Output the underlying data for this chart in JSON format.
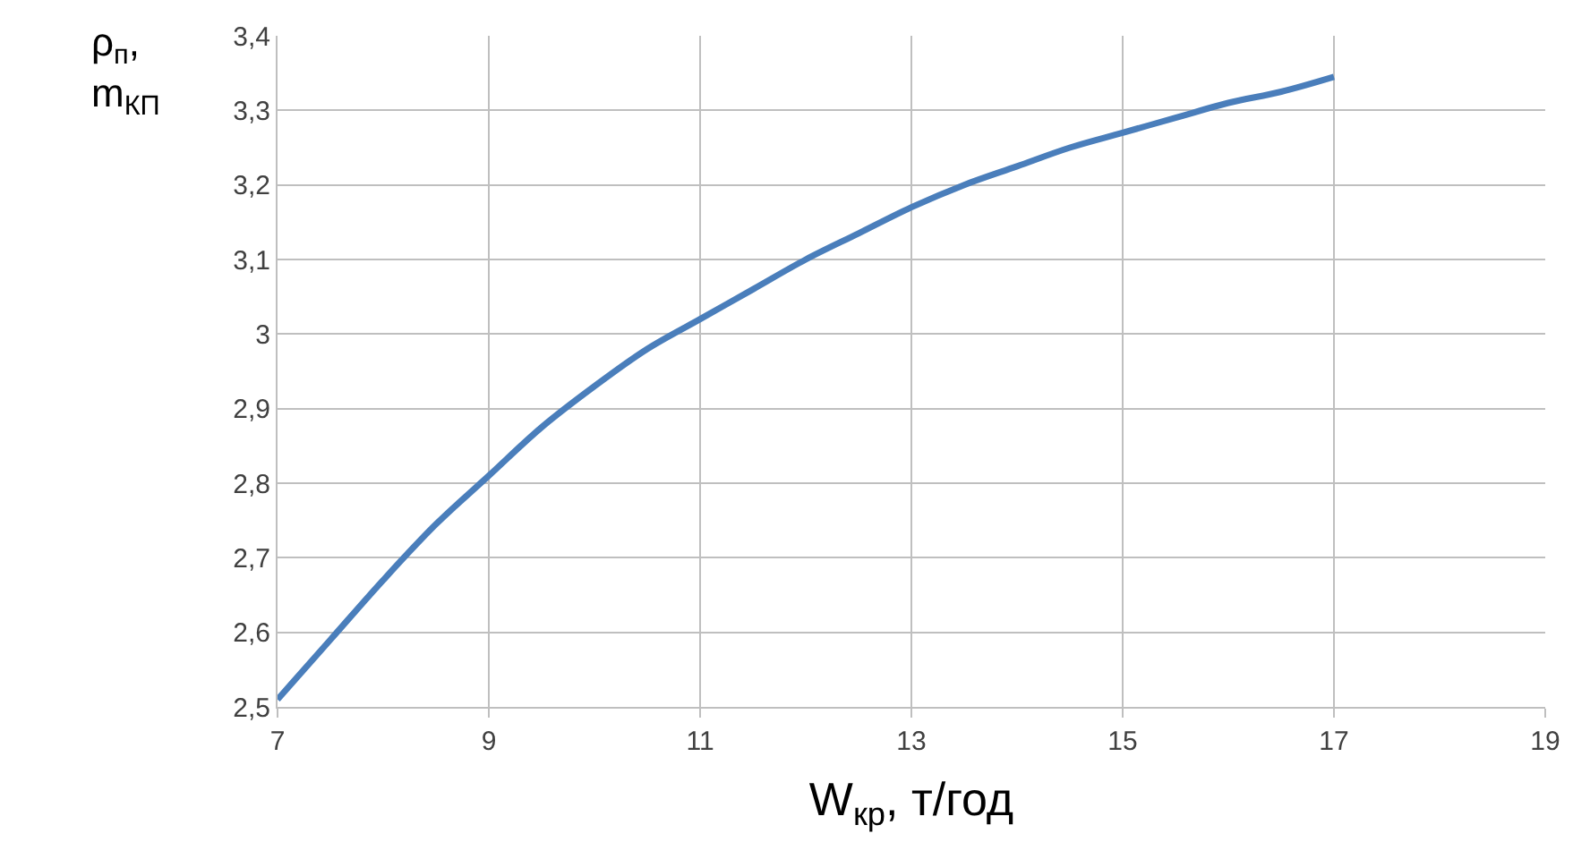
{
  "chart_data": {
    "type": "line",
    "xlabel": "W$_{кр}$, т/год",
    "ylabel": "ρ$_{п}$, m$_{КП}$",
    "x": [
      7,
      7.5,
      8,
      8.5,
      9,
      9.5,
      10,
      10.5,
      11,
      11.5,
      12,
      12.5,
      13,
      13.5,
      14,
      14.5,
      15,
      15.5,
      16,
      16.5,
      17
    ],
    "series": [
      {
        "color": "#4a7ebb",
        "values": [
          2.51,
          2.59,
          2.67,
          2.745,
          2.81,
          2.875,
          2.93,
          2.98,
          3.02,
          3.06,
          3.1,
          3.135,
          3.17,
          3.2,
          3.225,
          3.25,
          3.27,
          3.29,
          3.31,
          3.325,
          3.345
        ]
      }
    ],
    "xlim": [
      7,
      19
    ],
    "xticks": [
      7,
      9,
      11,
      13,
      15,
      17,
      19
    ],
    "ylim": [
      2.5,
      3.4
    ],
    "yticks": [
      {
        "value": 2.5,
        "label": "2,5"
      },
      {
        "value": 2.6,
        "label": "2,6"
      },
      {
        "value": 2.7,
        "label": "2,7"
      },
      {
        "value": 2.8,
        "label": "2,8"
      },
      {
        "value": 2.9,
        "label": "2,9"
      },
      3,
      {
        "value": 3.1,
        "label": "3,1"
      },
      {
        "value": 3.2,
        "label": "3,2"
      },
      {
        "value": 3.3,
        "label": "3,3"
      },
      {
        "value": 3.4,
        "label": "3,4"
      }
    ],
    "grid": true,
    "legend": false,
    "marker": "none",
    "line_style": "solid"
  }
}
